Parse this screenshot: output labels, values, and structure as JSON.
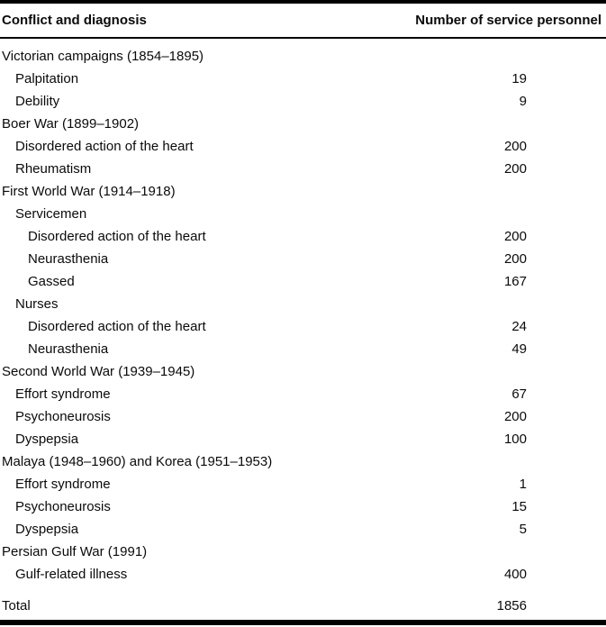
{
  "table": {
    "columns": {
      "left": "Conflict and diagnosis",
      "right": "Number of service personnel"
    },
    "rows": [
      {
        "label": "Victorian campaigns (1854–1895)",
        "value": "",
        "indent": 0
      },
      {
        "label": "Palpitation",
        "value": "19",
        "indent": 1
      },
      {
        "label": "Debility",
        "value": "9",
        "indent": 1
      },
      {
        "label": "Boer War (1899–1902)",
        "value": "",
        "indent": 0
      },
      {
        "label": "Disordered action of the heart",
        "value": "200",
        "indent": 1
      },
      {
        "label": "Rheumatism",
        "value": "200",
        "indent": 1
      },
      {
        "label": "First World War (1914–1918)",
        "value": "",
        "indent": 0
      },
      {
        "label": "Servicemen",
        "value": "",
        "indent": 1
      },
      {
        "label": "Disordered action of the heart",
        "value": "200",
        "indent": 2
      },
      {
        "label": "Neurasthenia",
        "value": "200",
        "indent": 2
      },
      {
        "label": "Gassed",
        "value": "167",
        "indent": 2
      },
      {
        "label": "Nurses",
        "value": "",
        "indent": 1
      },
      {
        "label": "Disordered action of the heart",
        "value": "24",
        "indent": 2
      },
      {
        "label": "Neurasthenia",
        "value": "49",
        "indent": 2
      },
      {
        "label": "Second World War (1939–1945)",
        "value": "",
        "indent": 0
      },
      {
        "label": "Effort syndrome",
        "value": "67",
        "indent": 1
      },
      {
        "label": "Psychoneurosis",
        "value": "200",
        "indent": 1
      },
      {
        "label": "Dyspepsia",
        "value": "100",
        "indent": 1
      },
      {
        "label": "Malaya (1948–1960) and Korea (1951–1953)",
        "value": "",
        "indent": 0
      },
      {
        "label": "Effort syndrome",
        "value": "1",
        "indent": 1
      },
      {
        "label": "Psychoneurosis",
        "value": "15",
        "indent": 1
      },
      {
        "label": "Dyspepsia",
        "value": "5",
        "indent": 1
      },
      {
        "label": "Persian Gulf War (1991)",
        "value": "",
        "indent": 0
      },
      {
        "label": "Gulf-related illness",
        "value": "400",
        "indent": 1
      }
    ],
    "total": {
      "label": "Total",
      "value": "1856"
    }
  }
}
